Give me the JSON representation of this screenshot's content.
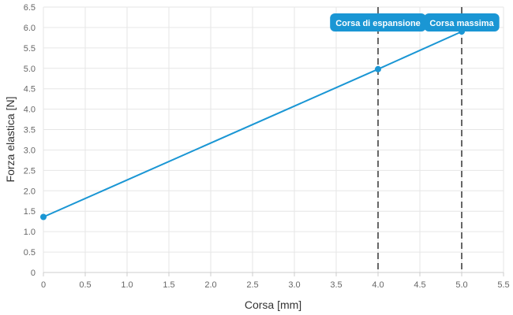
{
  "chart_data": {
    "type": "line",
    "xlabel": "Corsa [mm]",
    "ylabel": "Forza elastica [N]",
    "xlim": [
      0,
      5.5
    ],
    "ylim": [
      0,
      6.5
    ],
    "x_ticks": [
      "0",
      "0.5",
      "1.0",
      "1.5",
      "2.0",
      "2.5",
      "3.0",
      "3.5",
      "4.0",
      "4.5",
      "5.0",
      "5.5"
    ],
    "y_ticks": [
      "0",
      "0.5",
      "1.0",
      "1.5",
      "2.0",
      "2.5",
      "3.0",
      "3.5",
      "4.0",
      "4.5",
      "5.0",
      "5.5",
      "6.0",
      "6.5"
    ],
    "grid": true,
    "series": [
      {
        "color": "#1a96d4",
        "points": [
          [
            0,
            1.36
          ],
          [
            4.0,
            4.98
          ],
          [
            5.0,
            5.9
          ]
        ]
      }
    ],
    "annotations": [
      {
        "label": "Corsa di espansione",
        "x": 4.0
      },
      {
        "label": "Corsa massima",
        "x": 5.0
      }
    ],
    "annotation_color": "#1a96d4",
    "reference_line_color": "#333333"
  }
}
